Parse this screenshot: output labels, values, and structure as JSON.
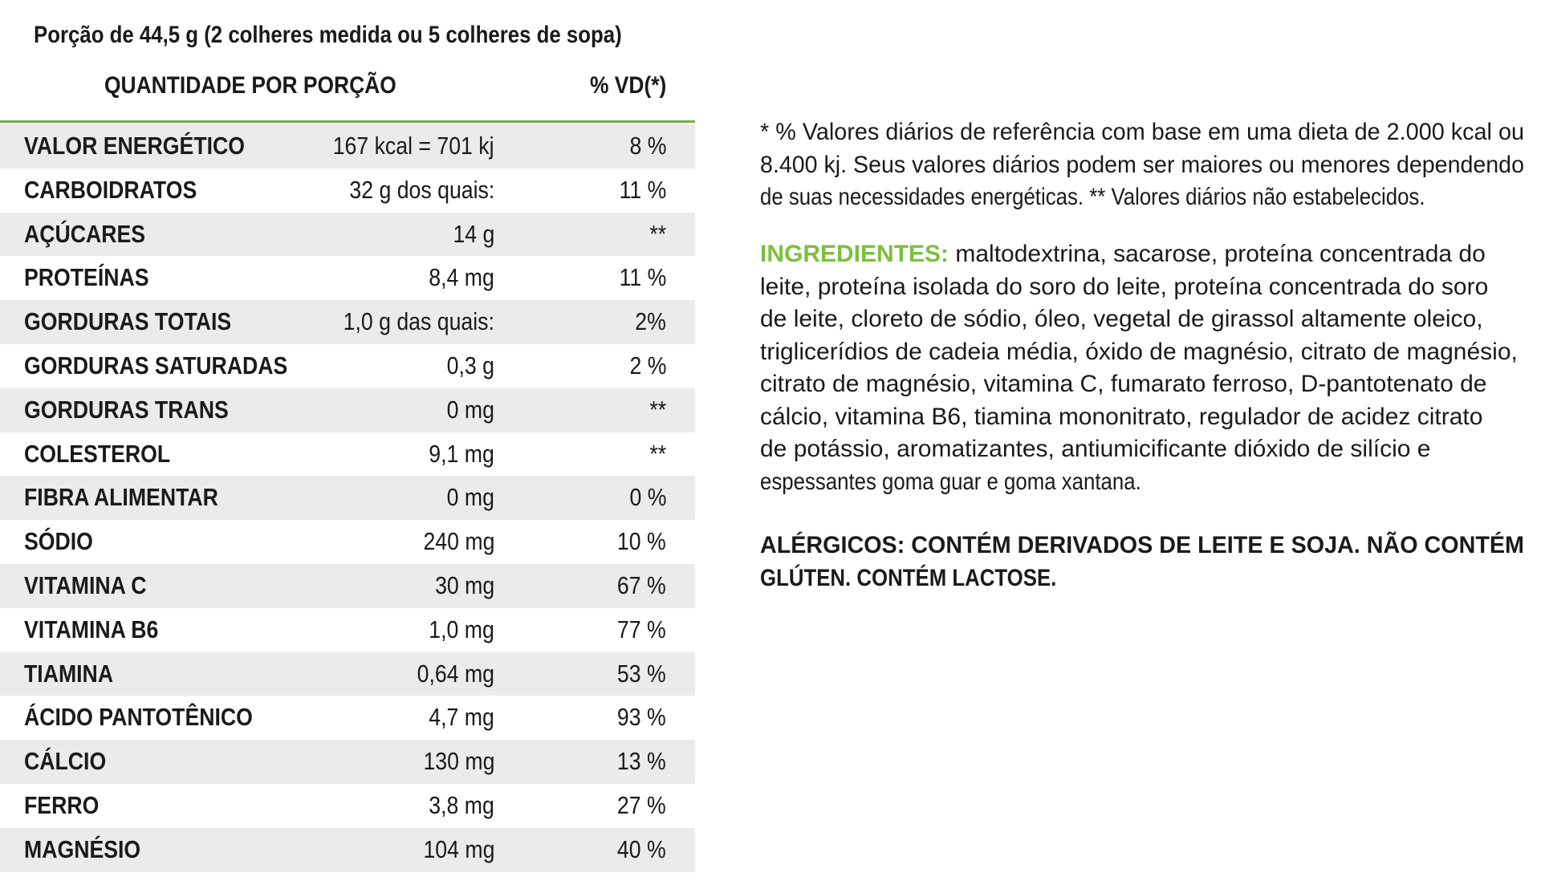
{
  "serving": "Porção de 44,5 g (2 colheres medida ou 5 colheres de sopa)",
  "header": {
    "quantity_label": "QUANTIDADE POR PORÇÃO",
    "vd_label": "% VD(*)"
  },
  "colors": {
    "accent_green": "#6ab23e",
    "ingredients_green": "#7cbf3f",
    "row_shade": "#ebebeb"
  },
  "rows": [
    {
      "name": "VALOR ENERGÉTICO",
      "amount": "167 kcal = 701 kj",
      "vd": "8 %"
    },
    {
      "name": "CARBOIDRATOS",
      "amount": "32 g dos quais:",
      "vd": "11 %"
    },
    {
      "name": "AÇÚCARES",
      "amount": "14 g",
      "vd": "**"
    },
    {
      "name": "PROTEÍNAS",
      "amount": "8,4 mg",
      "vd": "11 %"
    },
    {
      "name": "GORDURAS TOTAIS",
      "amount": "1,0 g das quais:",
      "vd": "2%"
    },
    {
      "name": "GORDURAS SATURADAS",
      "amount": "0,3 g",
      "vd": "2 %"
    },
    {
      "name": "GORDURAS TRANS",
      "amount": "0 mg",
      "vd": "**"
    },
    {
      "name": "COLESTEROL",
      "amount": "9,1 mg",
      "vd": "**"
    },
    {
      "name": "FIBRA ALIMENTAR",
      "amount": "0 mg",
      "vd": "0 %"
    },
    {
      "name": "SÓDIO",
      "amount": "240 mg",
      "vd": "10 %"
    },
    {
      "name": "VITAMINA C",
      "amount": "30 mg",
      "vd": "67 %"
    },
    {
      "name": "VITAMINA B6",
      "amount": "1,0 mg",
      "vd": "77 %"
    },
    {
      "name": "TIAMINA",
      "amount": "0,64 mg",
      "vd": "53 %"
    },
    {
      "name": "ÁCIDO PANTOTÊNICO",
      "amount": "4,7 mg",
      "vd": "93 %"
    },
    {
      "name": "CÁLCIO",
      "amount": "130 mg",
      "vd": "13 %"
    },
    {
      "name": "FERRO",
      "amount": "3,8 mg",
      "vd": "27 %"
    },
    {
      "name": "MAGNÉSIO",
      "amount": "104 mg",
      "vd": "40 %"
    }
  ],
  "footnote": {
    "lines": [
      "* % Valores diários de referência com base em uma dieta de 2.000 kcal ou",
      "8.400 kj. Seus valores diários podem ser maiores ou menores dependendo",
      "de suas necessidades energéticas. ** Valores diários não estabelecidos."
    ]
  },
  "ingredients": {
    "label": "INGREDIENTES:",
    "first_line_rest": " maltodextrina, sacarose, proteína concentrada do",
    "lines": [
      "leite, proteína isolada do soro do leite, proteína concentrada do soro",
      "de leite, cloreto de sódio, óleo, vegetal de girassol altamente oleico,",
      "triglicerídios de cadeia média, óxido de magnésio, citrato de magnésio,",
      "citrato de magnésio, vitamina C, fumarato ferroso, D-pantotenato de",
      "cálcio, vitamina B6, tiamina mononitrato, regulador de acidez citrato",
      "de potássio, aromatizantes, antiumicificante dióxido de silício e",
      "espessantes goma guar e goma xantana."
    ]
  },
  "allergens": {
    "lines": [
      "ALÉRGICOS: CONTÉM DERIVADOS DE LEITE E SOJA. NÃO CONTÉM",
      "GLÚTEN. CONTÉM LACTOSE."
    ]
  }
}
